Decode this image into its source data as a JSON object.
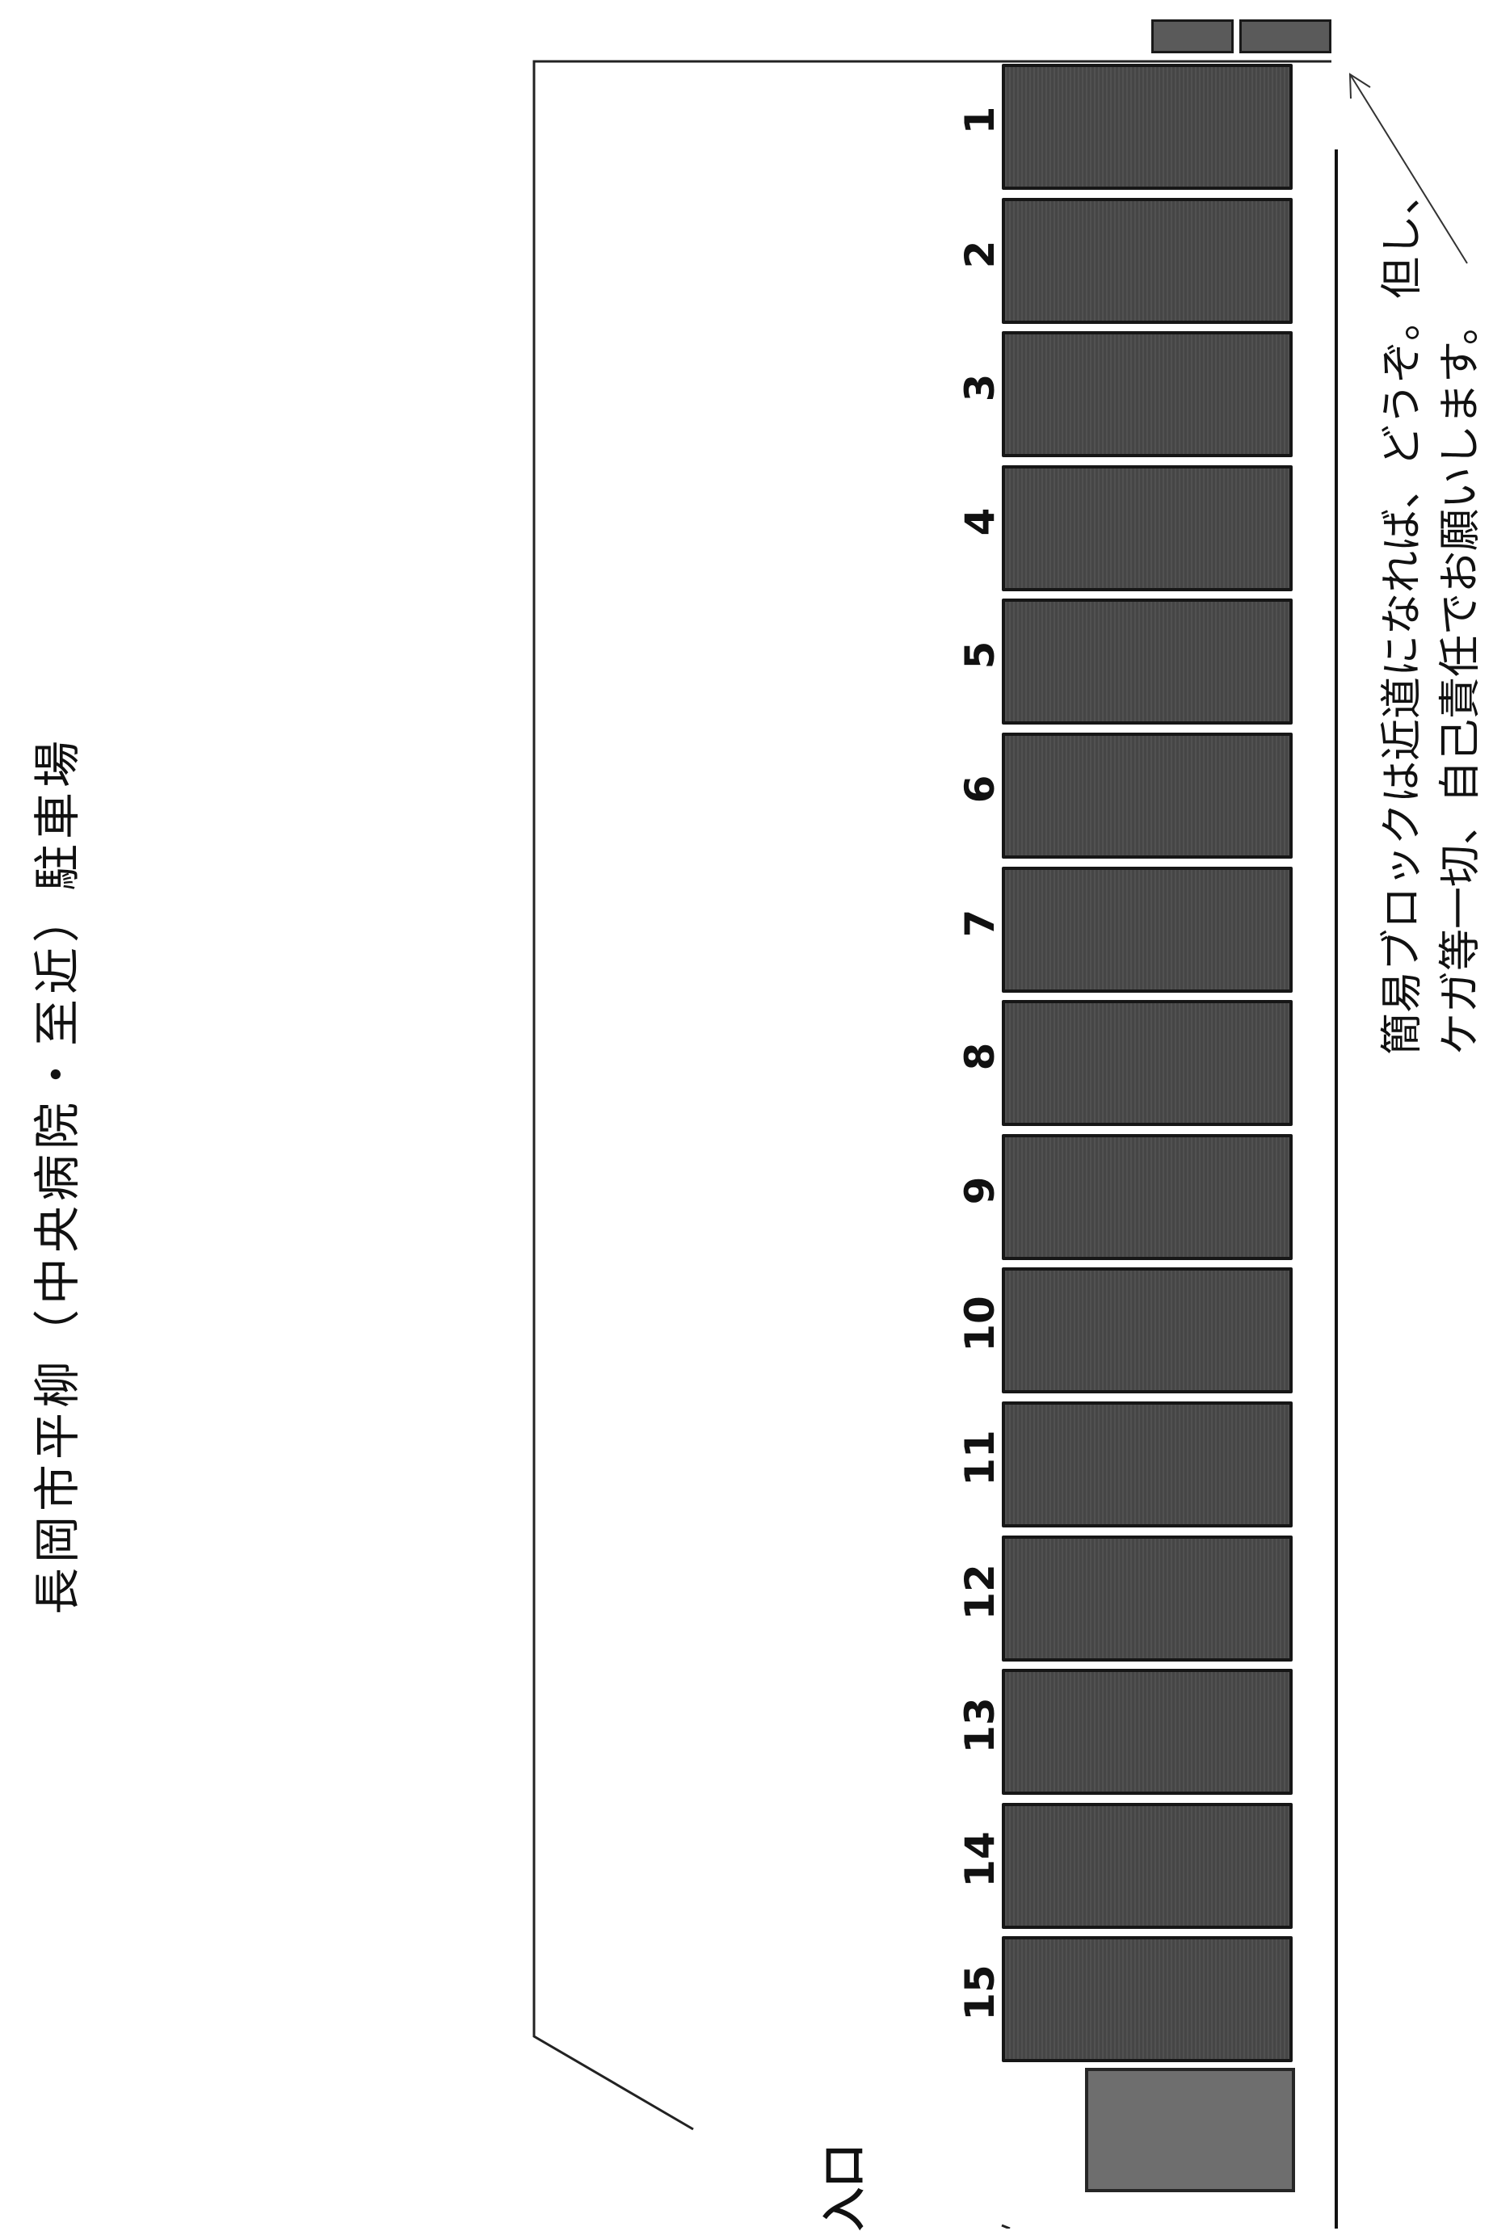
{
  "title": "長岡市平柳（中央病院・至近）駐車場",
  "stalls": [
    "1",
    "2",
    "3",
    "4",
    "5",
    "6",
    "7",
    "8",
    "9",
    "10",
    "11",
    "12",
    "13",
    "14",
    "15"
  ],
  "entrance_label": "入口",
  "note": {
    "line1": "簡易ブロックは近道になれば、どうぞ。但し、",
    "line2": "ケガ等一切、自己責任でお願いします。"
  },
  "colors": {
    "stall": "#4a4a4a",
    "extra_block": "#6e6e6e",
    "line": "#111111"
  }
}
